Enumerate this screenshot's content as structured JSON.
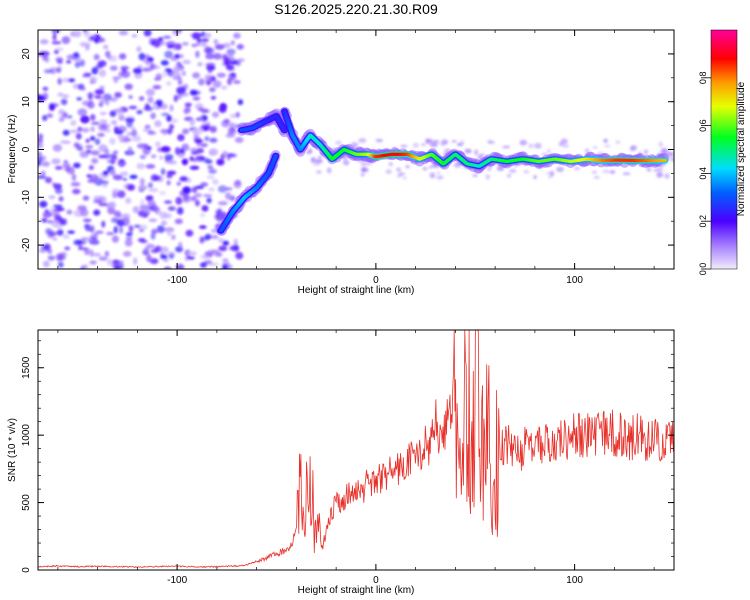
{
  "title": "S126.2025.220.21.30.R09",
  "chart_data": [
    {
      "type": "heatmap",
      "xlabel": "Height of straight line (km)",
      "ylabel": "Frequency (Hz)",
      "xlim": [
        -170,
        150
      ],
      "ylim": [
        -25,
        25
      ],
      "x_ticks": [
        -100,
        0,
        100
      ],
      "y_ticks": [
        -20,
        -10,
        0,
        10,
        20
      ],
      "colorbar": {
        "label": "Normalized spectral amplitude",
        "range": [
          0,
          1
        ],
        "ticks": [
          "0.0",
          "0.2",
          "0.4",
          "0.6",
          "0.8"
        ],
        "colormap": "rainbow (white/lavender → purple → blue → cyan → green → yellow → orange → red → magenta)"
      },
      "noise_region_x": [
        -170,
        -68
      ],
      "noise_amplitude": 0.15,
      "trace": [
        {
          "x": -78,
          "y": -17,
          "amp": 0.3
        },
        {
          "x": -72,
          "y": -13,
          "amp": 0.35
        },
        {
          "x": -66,
          "y": -10,
          "amp": 0.4
        },
        {
          "x": -60,
          "y": -8,
          "amp": 0.35
        },
        {
          "x": -54,
          "y": -5,
          "amp": 0.3
        },
        {
          "x": -50,
          "y": -1,
          "amp": 0.3
        },
        {
          "x": -46,
          "y": 4,
          "amp": 0.25
        },
        {
          "x": -50,
          "y": 7,
          "amp": 0.25
        },
        {
          "x": -55,
          "y": 6,
          "amp": 0.25
        },
        {
          "x": -62,
          "y": 4.5,
          "amp": 0.3
        },
        {
          "x": -68,
          "y": 4,
          "amp": 0.3
        },
        {
          "x": -46,
          "y": 8,
          "amp": 0.25
        },
        {
          "x": -42,
          "y": 3,
          "amp": 0.35
        },
        {
          "x": -38,
          "y": 0,
          "amp": 0.35
        },
        {
          "x": -33,
          "y": 3,
          "amp": 0.45
        },
        {
          "x": -28,
          "y": 1,
          "amp": 0.45
        },
        {
          "x": -22,
          "y": -2,
          "amp": 0.55
        },
        {
          "x": -16,
          "y": 0,
          "amp": 0.55
        },
        {
          "x": -10,
          "y": -1,
          "amp": 0.6
        },
        {
          "x": -4,
          "y": -1,
          "amp": 0.65
        },
        {
          "x": 0,
          "y": -1.5,
          "amp": 0.85
        },
        {
          "x": 8,
          "y": -1,
          "amp": 0.9
        },
        {
          "x": 16,
          "y": -1,
          "amp": 0.85
        },
        {
          "x": 22,
          "y": -2,
          "amp": 0.7
        },
        {
          "x": 28,
          "y": -1,
          "amp": 0.6
        },
        {
          "x": 34,
          "y": -3,
          "amp": 0.55
        },
        {
          "x": 40,
          "y": -1,
          "amp": 0.5
        },
        {
          "x": 46,
          "y": -3,
          "amp": 0.5
        },
        {
          "x": 52,
          "y": -3.5,
          "amp": 0.45
        },
        {
          "x": 58,
          "y": -2,
          "amp": 0.5
        },
        {
          "x": 66,
          "y": -2.5,
          "amp": 0.55
        },
        {
          "x": 74,
          "y": -2,
          "amp": 0.55
        },
        {
          "x": 82,
          "y": -2.5,
          "amp": 0.6
        },
        {
          "x": 90,
          "y": -2,
          "amp": 0.6
        },
        {
          "x": 98,
          "y": -2.5,
          "amp": 0.65
        },
        {
          "x": 106,
          "y": -2,
          "amp": 0.7
        },
        {
          "x": 114,
          "y": -2.3,
          "amp": 0.8
        },
        {
          "x": 122,
          "y": -2.2,
          "amp": 0.85
        },
        {
          "x": 130,
          "y": -2.3,
          "amp": 0.85
        },
        {
          "x": 138,
          "y": -2.3,
          "amp": 0.8
        },
        {
          "x": 146,
          "y": -2.3,
          "amp": 0.75
        }
      ]
    },
    {
      "type": "line",
      "xlabel": "Height of straight line (km)",
      "ylabel": "SNR (10 * v/v)",
      "xlim": [
        -170,
        150
      ],
      "ylim": [
        0,
        1780
      ],
      "x_ticks": [
        -100,
        0,
        100
      ],
      "y_ticks": [
        0,
        500,
        1000,
        1500
      ],
      "color": "#e8302a",
      "series": [
        {
          "values": [
            [
              -170,
              25
            ],
            [
              -160,
              30
            ],
            [
              -150,
              25
            ],
            [
              -140,
              28
            ],
            [
              -130,
              25
            ],
            [
              -120,
              22
            ],
            [
              -110,
              25
            ],
            [
              -100,
              28
            ],
            [
              -90,
              22
            ],
            [
              -80,
              25
            ],
            [
              -70,
              30
            ],
            [
              -65,
              40
            ],
            [
              -60,
              60
            ],
            [
              -55,
              90
            ],
            [
              -50,
              120
            ],
            [
              -45,
              150
            ],
            [
              -42,
              200
            ],
            [
              -40,
              300
            ],
            [
              -38,
              600
            ],
            [
              -36,
              400
            ],
            [
              -33,
              950
            ],
            [
              -31,
              200
            ],
            [
              -29,
              350
            ],
            [
              -27,
              150
            ],
            [
              -25,
              300
            ],
            [
              -22,
              420
            ],
            [
              -20,
              520
            ],
            [
              -17,
              480
            ],
            [
              -14,
              560
            ],
            [
              -10,
              600
            ],
            [
              -7,
              580
            ],
            [
              -4,
              650
            ],
            [
              0,
              660
            ],
            [
              4,
              700
            ],
            [
              8,
              730
            ],
            [
              12,
              750
            ],
            [
              16,
              800
            ],
            [
              20,
              850
            ],
            [
              24,
              900
            ],
            [
              28,
              950
            ],
            [
              30,
              1100
            ],
            [
              32,
              1000
            ],
            [
              35,
              1050
            ],
            [
              38,
              1200
            ],
            [
              40,
              1400
            ],
            [
              42,
              600
            ],
            [
              44,
              1250
            ],
            [
              46,
              1550
            ],
            [
              48,
              800
            ],
            [
              50,
              1300
            ],
            [
              52,
              1450
            ],
            [
              54,
              700
            ],
            [
              56,
              1100
            ],
            [
              58,
              900
            ],
            [
              60,
              1000
            ],
            [
              62,
              850
            ],
            [
              65,
              950
            ],
            [
              68,
              900
            ],
            [
              72,
              880
            ],
            [
              76,
              920
            ],
            [
              80,
              900
            ],
            [
              84,
              950
            ],
            [
              88,
              930
            ],
            [
              92,
              970
            ],
            [
              96,
              950
            ],
            [
              100,
              1000
            ],
            [
              104,
              980
            ],
            [
              108,
              1010
            ],
            [
              112,
              1000
            ],
            [
              116,
              1030
            ],
            [
              120,
              1020
            ],
            [
              124,
              990
            ],
            [
              128,
              980
            ],
            [
              132,
              1000
            ],
            [
              136,
              960
            ],
            [
              140,
              980
            ],
            [
              144,
              940
            ],
            [
              148,
              960
            ],
            [
              150,
              970
            ]
          ]
        }
      ]
    }
  ]
}
